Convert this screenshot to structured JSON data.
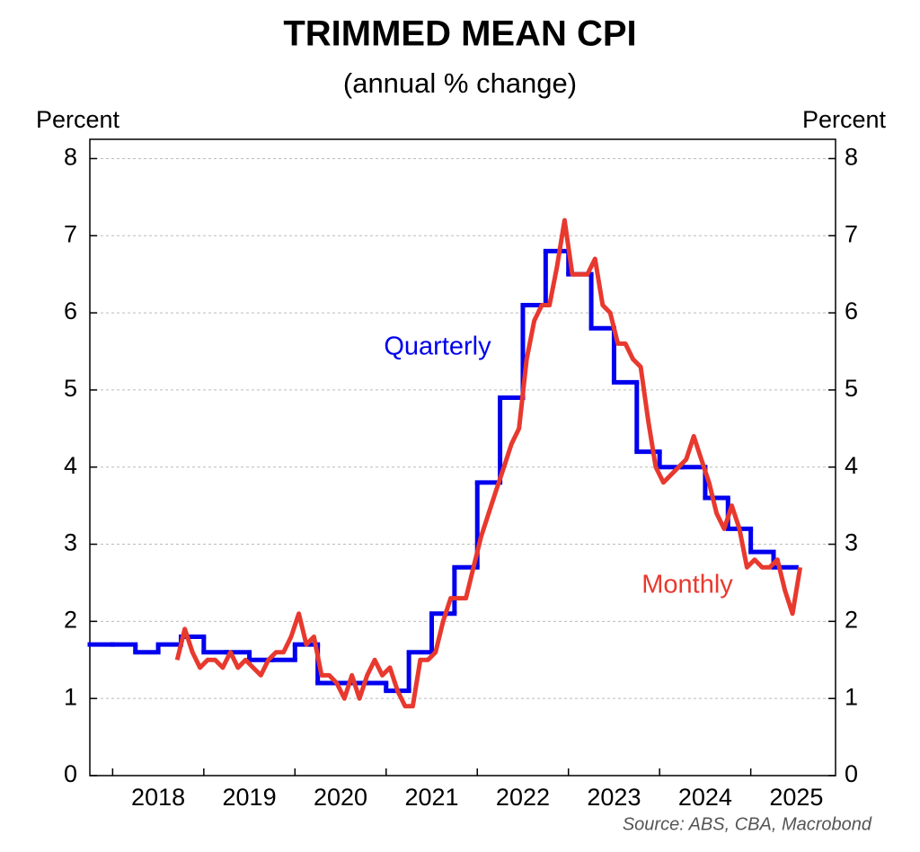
{
  "chart_data": {
    "type": "line",
    "title": "TRIMMED MEAN CPI",
    "subtitle": "(annual % change)",
    "ylabel": "Percent",
    "y2label": "Percent",
    "source": "Source: ABS, CBA, Macrobond",
    "xlim": [
      2017.75,
      2025.93
    ],
    "xticks": [
      2018,
      2019,
      2020,
      2021,
      2022,
      2023,
      2024,
      2025
    ],
    "ylim": [
      0,
      8.25
    ],
    "yticks": [
      0,
      1,
      2,
      3,
      4,
      5,
      6,
      7,
      8
    ],
    "y2lim": [
      0,
      8.25
    ],
    "y2ticks": [
      0,
      1,
      2,
      3,
      4,
      5,
      6,
      7,
      8
    ],
    "grid": true,
    "series": [
      {
        "name": "Quarterly",
        "color": "#0000ee",
        "step": true,
        "x": [
          2017.75,
          2018.0,
          2018.25,
          2018.5,
          2018.75,
          2019.0,
          2019.25,
          2019.5,
          2019.75,
          2020.0,
          2020.25,
          2020.5,
          2020.75,
          2021.0,
          2021.25,
          2021.5,
          2021.75,
          2022.0,
          2022.25,
          2022.5,
          2022.75,
          2023.0,
          2023.25,
          2023.5,
          2023.75,
          2024.0,
          2024.25,
          2024.5,
          2024.75,
          2025.0,
          2025.25
        ],
        "values": [
          1.7,
          1.7,
          1.6,
          1.7,
          1.8,
          1.6,
          1.6,
          1.5,
          1.5,
          1.7,
          1.2,
          1.2,
          1.2,
          1.1,
          1.6,
          2.1,
          2.7,
          3.8,
          4.9,
          6.1,
          6.8,
          6.5,
          5.8,
          5.1,
          4.2,
          4.0,
          4.0,
          3.6,
          3.2,
          2.9,
          2.7
        ]
      },
      {
        "name": "Monthly",
        "color": "#e8392f",
        "x": [
          2018.708,
          2018.792,
          2018.875,
          2018.958,
          2019.042,
          2019.125,
          2019.208,
          2019.292,
          2019.375,
          2019.458,
          2019.542,
          2019.625,
          2019.708,
          2019.792,
          2019.875,
          2019.958,
          2020.042,
          2020.125,
          2020.208,
          2020.292,
          2020.375,
          2020.458,
          2020.542,
          2020.625,
          2020.708,
          2020.792,
          2020.875,
          2020.958,
          2021.042,
          2021.125,
          2021.208,
          2021.292,
          2021.375,
          2021.458,
          2021.542,
          2021.625,
          2021.708,
          2021.792,
          2021.875,
          2021.958,
          2022.042,
          2022.125,
          2022.208,
          2022.292,
          2022.375,
          2022.458,
          2022.542,
          2022.625,
          2022.708,
          2022.792,
          2022.875,
          2022.958,
          2023.042,
          2023.125,
          2023.208,
          2023.292,
          2023.375,
          2023.458,
          2023.542,
          2023.625,
          2023.708,
          2023.792,
          2023.875,
          2023.958,
          2024.042,
          2024.125,
          2024.208,
          2024.292,
          2024.375,
          2024.458,
          2024.542,
          2024.625,
          2024.708,
          2024.792,
          2024.875,
          2024.958,
          2025.042,
          2025.125,
          2025.208,
          2025.292,
          2025.375,
          2025.458,
          2025.542
        ],
        "values": [
          1.5,
          1.9,
          1.6,
          1.4,
          1.5,
          1.5,
          1.4,
          1.6,
          1.4,
          1.5,
          1.4,
          1.3,
          1.5,
          1.6,
          1.6,
          1.8,
          2.1,
          1.7,
          1.8,
          1.3,
          1.3,
          1.2,
          1.0,
          1.3,
          1.0,
          1.3,
          1.5,
          1.3,
          1.4,
          1.1,
          0.9,
          0.9,
          1.5,
          1.5,
          1.6,
          2.0,
          2.3,
          2.3,
          2.3,
          2.7,
          3.1,
          3.4,
          3.7,
          4.0,
          4.3,
          4.5,
          5.4,
          5.9,
          6.1,
          6.1,
          6.6,
          7.2,
          6.5,
          6.5,
          6.5,
          6.7,
          6.1,
          6.0,
          5.6,
          5.6,
          5.4,
          5.3,
          4.6,
          4.0,
          3.8,
          3.9,
          4.0,
          4.1,
          4.4,
          4.1,
          3.8,
          3.4,
          3.2,
          3.5,
          3.2,
          2.7,
          2.8,
          2.7,
          2.7,
          2.8,
          2.4,
          2.1,
          2.7
        ]
      }
    ]
  }
}
